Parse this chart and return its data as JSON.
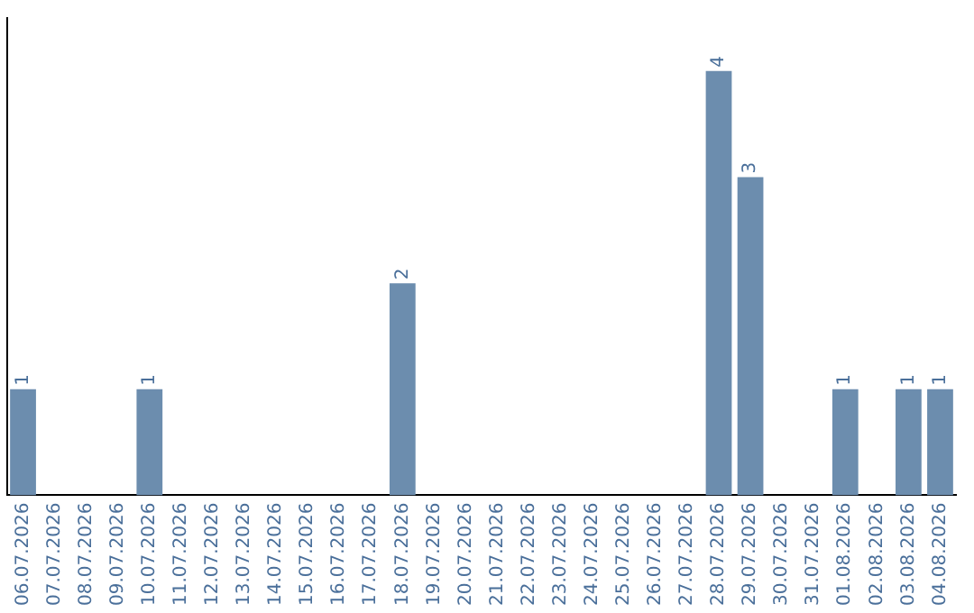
{
  "chart_data": {
    "type": "bar",
    "categories": [
      "06.07.2026",
      "07.07.2026",
      "08.07.2026",
      "09.07.2026",
      "10.07.2026",
      "11.07.2026",
      "12.07.2026",
      "13.07.2026",
      "14.07.2026",
      "15.07.2026",
      "16.07.2026",
      "17.07.2026",
      "18.07.2026",
      "19.07.2026",
      "20.07.2026",
      "21.07.2026",
      "22.07.2026",
      "23.07.2026",
      "24.07.2026",
      "25.07.2026",
      "26.07.2026",
      "27.07.2026",
      "28.07.2026",
      "29.07.2026",
      "30.07.2026",
      "31.07.2026",
      "01.08.2026",
      "02.08.2026",
      "03.08.2026",
      "04.08.2026"
    ],
    "values": [
      1,
      0,
      0,
      0,
      1,
      0,
      0,
      0,
      0,
      0,
      0,
      0,
      2,
      0,
      0,
      0,
      0,
      0,
      0,
      0,
      0,
      0,
      4,
      3,
      0,
      0,
      1,
      0,
      1,
      1
    ],
    "color": "#6c8dae",
    "value_labels": [
      "1",
      null,
      null,
      null,
      "1",
      null,
      null,
      null,
      null,
      null,
      null,
      null,
      "2",
      null,
      null,
      null,
      null,
      null,
      null,
      null,
      null,
      null,
      "4",
      "3",
      null,
      null,
      "1",
      null,
      "1",
      "1"
    ],
    "tick_labels": "x",
    "grid": false,
    "legend": false
  }
}
